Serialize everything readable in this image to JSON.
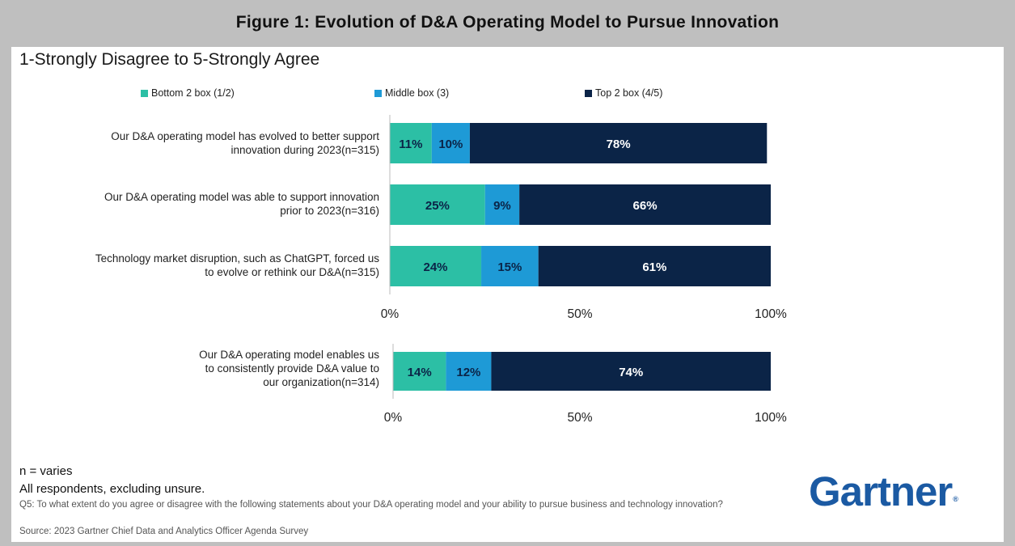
{
  "title": "Figure 1: Evolution of D&A Operating Model to Pursue Innovation",
  "subtitle": "1-Strongly Disagree to 5-Strongly Agree",
  "colors": {
    "bottom": "#2cbfa5",
    "middle": "#1e9ad6",
    "top": "#0b2447",
    "logo": "#1b5aa3"
  },
  "chart_data": [
    {
      "type": "bar",
      "orientation": "horizontal-stacked",
      "legend_position": "top",
      "categories": [
        [
          "Our D&A operating model has evolved to better support",
          "innovation during 2023(n=315)"
        ],
        [
          "Our D&A operating model was able to support innovation",
          "prior to 2023(n=316)"
        ],
        [
          "Technology market disruption, such as ChatGPT, forced us",
          "to evolve or rethink our D&A(n=315)"
        ]
      ],
      "series": [
        {
          "name": "Bottom 2 box (1/2)",
          "values": [
            11,
            25,
            24
          ],
          "labels": [
            "11%",
            "25%",
            "24%"
          ]
        },
        {
          "name": "Middle box (3)",
          "values": [
            10,
            9,
            15
          ],
          "labels": [
            "10%",
            "9%",
            "15%"
          ]
        },
        {
          "name": "Top 2 box (4/5)",
          "values": [
            78,
            66,
            61
          ],
          "labels": [
            "78%",
            "66%",
            "61%"
          ]
        }
      ],
      "xlim": [
        0,
        100
      ],
      "xticks": [
        "0%",
        "50%",
        "100%"
      ]
    },
    {
      "type": "bar",
      "orientation": "horizontal-stacked",
      "categories": [
        [
          "Our D&A operating model enables us",
          "to consistently provide D&A value to",
          "our organization(n=314)"
        ]
      ],
      "series": [
        {
          "name": "Bottom 2 box (1/2)",
          "values": [
            14
          ],
          "labels": [
            "14%"
          ]
        },
        {
          "name": "Middle box (3)",
          "values": [
            12
          ],
          "labels": [
            "12%"
          ]
        },
        {
          "name": "Top 2 box (4/5)",
          "values": [
            74
          ],
          "labels": [
            "74%"
          ]
        }
      ],
      "xlim": [
        0,
        100
      ],
      "xticks": [
        "0%",
        "50%",
        "100%"
      ]
    }
  ],
  "footer": {
    "n_note": "n = varies",
    "respondents": "All respondents, excluding unsure.",
    "question": "Q5: To what extent do you agree or disagree with the following statements about your D&A operating model and your ability to pursue business and technology innovation?",
    "source": "Source: 2023 Gartner Chief Data and Analytics Officer Agenda Survey"
  },
  "logo": {
    "text": "Gartner",
    "mark": "®"
  }
}
